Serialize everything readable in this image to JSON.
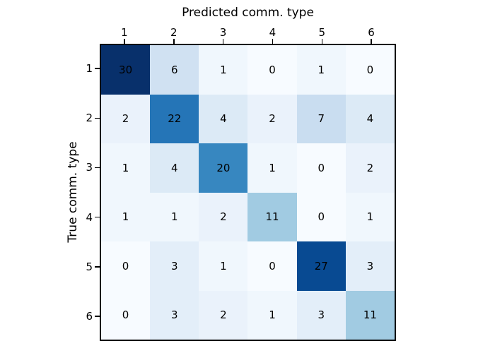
{
  "title": "Predicted comm. type",
  "ylabel": "True comm. type",
  "chart_data": {
    "type": "heatmap",
    "title": "Predicted comm. type",
    "title_position": "top",
    "ylabel": "True comm. type",
    "ylabel_position": "left",
    "x_ticklabels": [
      "1",
      "2",
      "3",
      "4",
      "5",
      "6"
    ],
    "y_ticklabels": [
      "1",
      "2",
      "3",
      "4",
      "5",
      "6"
    ],
    "matrix": [
      [
        30,
        6,
        1,
        0,
        1,
        0
      ],
      [
        2,
        22,
        4,
        2,
        7,
        4
      ],
      [
        1,
        4,
        20,
        1,
        0,
        2
      ],
      [
        1,
        1,
        2,
        11,
        0,
        1
      ],
      [
        0,
        3,
        1,
        0,
        27,
        3
      ],
      [
        0,
        3,
        2,
        1,
        3,
        11
      ]
    ],
    "colormap": "Blues",
    "vmin": 0,
    "vmax": 30,
    "grid": false,
    "legend": false,
    "value_colors": {
      "0": "#f7fbff",
      "1": "#f0f7fd",
      "2": "#eaf2fb",
      "3": "#e3eef9",
      "4": "#dceaf6",
      "6": "#d0e1f2",
      "7": "#c9ddf0",
      "11": "#a1cbe2",
      "20": "#3787c0",
      "22": "#2575b7",
      "27": "#084a92",
      "30": "#08306b"
    },
    "cell_text_color": "#000000",
    "axes_edge_color": "#000000"
  }
}
